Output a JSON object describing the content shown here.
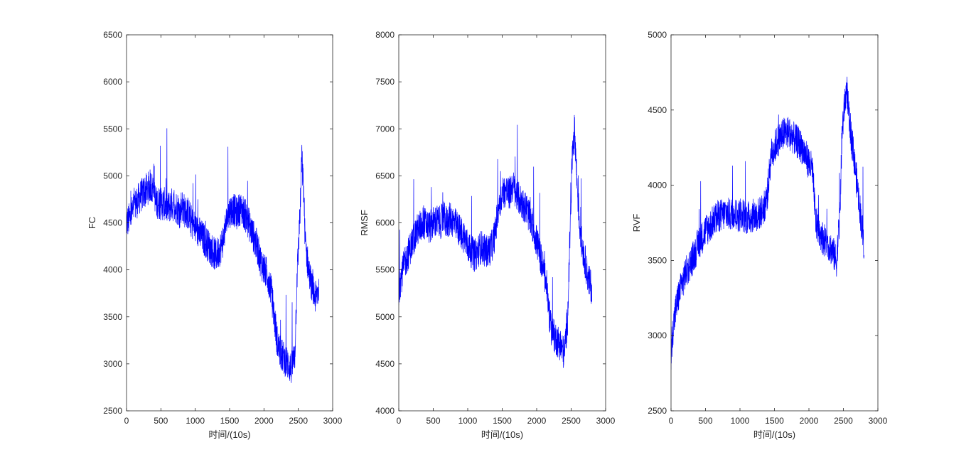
{
  "figure": {
    "background": "#ffffff",
    "axis_color": "#262626",
    "line_color": "#0000ff"
  },
  "chart_data": [
    {
      "type": "line",
      "xlabel": "时间/(10s)",
      "ylabel": "FC",
      "xlim": [
        0,
        3000
      ],
      "ylim": [
        2500,
        6500
      ],
      "xticks": [
        "0",
        "500",
        "1000",
        "1500",
        "2000",
        "2500",
        "3000"
      ],
      "yticks": [
        "2500",
        "3000",
        "3500",
        "4000",
        "4500",
        "5000",
        "5500",
        "6000",
        "6500"
      ],
      "grid": false,
      "series": [
        {
          "color": "#0000ff",
          "x": [
            0,
            50,
            100,
            150,
            200,
            250,
            300,
            350,
            380,
            400,
            420,
            450,
            500,
            550,
            600,
            650,
            700,
            750,
            780,
            800,
            850,
            900,
            950,
            1000,
            1050,
            1100,
            1150,
            1200,
            1250,
            1300,
            1350,
            1400,
            1450,
            1480,
            1500,
            1550,
            1600,
            1650,
            1700,
            1750,
            1800,
            1850,
            1900,
            1950,
            2000,
            2050,
            2100,
            2150,
            2200,
            2250,
            2300,
            2350,
            2400,
            2450,
            2480,
            2500,
            2530,
            2550,
            2580,
            2600,
            2650,
            2700,
            2750,
            2800
          ],
          "y": [
            4500,
            4550,
            4650,
            4720,
            4780,
            4820,
            4860,
            4900,
            4850,
            5000,
            4700,
            4720,
            4700,
            4700,
            4650,
            4700,
            4680,
            4650,
            4600,
            4700,
            4620,
            4600,
            4500,
            4450,
            4400,
            4350,
            4300,
            4250,
            4200,
            4150,
            4200,
            4300,
            4500,
            4600,
            4620,
            4650,
            4600,
            4650,
            4620,
            4550,
            4450,
            4350,
            4250,
            4100,
            4000,
            3950,
            3800,
            3500,
            3200,
            3100,
            3050,
            3000,
            2950,
            3100,
            3900,
            4200,
            4700,
            5200,
            4800,
            4300,
            4000,
            3800,
            3700,
            3800
          ]
        }
      ]
    },
    {
      "type": "line",
      "xlabel": "时间/(10s)",
      "ylabel": "RMSF",
      "xlim": [
        0,
        3000
      ],
      "ylim": [
        4000,
        8000
      ],
      "xticks": [
        "0",
        "500",
        "1000",
        "1500",
        "2000",
        "2500",
        "3000"
      ],
      "yticks": [
        "4000",
        "4500",
        "5000",
        "5500",
        "6000",
        "6500",
        "7000",
        "7500",
        "8000"
      ],
      "grid": false,
      "series": [
        {
          "color": "#0000ff",
          "x": [
            0,
            30,
            60,
            100,
            150,
            200,
            250,
            300,
            350,
            400,
            450,
            500,
            550,
            600,
            650,
            700,
            750,
            800,
            850,
            900,
            950,
            1000,
            1050,
            1100,
            1150,
            1200,
            1250,
            1300,
            1350,
            1400,
            1450,
            1500,
            1550,
            1600,
            1650,
            1700,
            1750,
            1800,
            1850,
            1900,
            1950,
            2000,
            2050,
            2100,
            2150,
            2200,
            2250,
            2300,
            2350,
            2400,
            2450,
            2480,
            2520,
            2550,
            2580,
            2620,
            2650,
            2700,
            2750,
            2800
          ],
          "y": [
            5300,
            5400,
            5500,
            5600,
            5700,
            5800,
            5900,
            5950,
            6000,
            5980,
            5950,
            6000,
            6020,
            6000,
            6050,
            6000,
            6050,
            6000,
            5950,
            5900,
            5850,
            5750,
            5700,
            5650,
            5700,
            5750,
            5700,
            5700,
            5750,
            5900,
            6200,
            6300,
            6350,
            6300,
            6400,
            6300,
            6250,
            6200,
            6150,
            6050,
            5950,
            5800,
            5650,
            5500,
            5300,
            4900,
            4800,
            4750,
            4700,
            4600,
            5000,
            5800,
            6800,
            7000,
            6500,
            6000,
            5800,
            5600,
            5400,
            5300
          ]
        }
      ]
    },
    {
      "type": "line",
      "xlabel": "时间/(10s)",
      "ylabel": "RVF",
      "xlim": [
        0,
        3000
      ],
      "ylim": [
        2500,
        5000
      ],
      "xticks": [
        "0",
        "500",
        "1000",
        "1500",
        "2000",
        "2500",
        "3000"
      ],
      "yticks": [
        "2500",
        "3000",
        "3500",
        "4000",
        "4500",
        "5000"
      ],
      "grid": false,
      "series": [
        {
          "color": "#0000ff",
          "x": [
            0,
            10,
            30,
            60,
            100,
            150,
            200,
            250,
            300,
            350,
            400,
            450,
            500,
            550,
            600,
            650,
            700,
            750,
            800,
            850,
            900,
            950,
            1000,
            1050,
            1100,
            1150,
            1200,
            1250,
            1300,
            1350,
            1400,
            1450,
            1500,
            1550,
            1600,
            1650,
            1700,
            1750,
            1800,
            1850,
            1900,
            1950,
            2000,
            2050,
            2100,
            2150,
            2200,
            2250,
            2300,
            2350,
            2400,
            2450,
            2480,
            2520,
            2550,
            2580,
            2620,
            2650,
            2700,
            2750,
            2800
          ],
          "y": [
            2800,
            2950,
            3050,
            3150,
            3250,
            3330,
            3400,
            3450,
            3500,
            3550,
            3620,
            3650,
            3700,
            3720,
            3750,
            3780,
            3800,
            3800,
            3820,
            3800,
            3820,
            3800,
            3800,
            3800,
            3780,
            3790,
            3800,
            3800,
            3820,
            3850,
            3950,
            4200,
            4250,
            4300,
            4320,
            4350,
            4350,
            4330,
            4300,
            4280,
            4250,
            4200,
            4150,
            4100,
            3750,
            3700,
            3650,
            3620,
            3600,
            3550,
            3500,
            3800,
            4350,
            4550,
            4650,
            4450,
            4300,
            4200,
            4000,
            3800,
            3600
          ]
        }
      ]
    }
  ]
}
